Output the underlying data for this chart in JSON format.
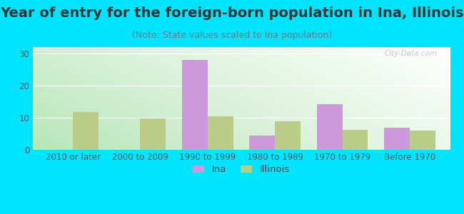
{
  "title": "Year of entry for the foreign-born population in Ina, Illinois",
  "subtitle": "(Note: State values scaled to Ina population)",
  "categories": [
    "2010 or later",
    "2000 to 2009",
    "1990 to 1999",
    "1980 to 1989",
    "1970 to 1979",
    "Before 1970"
  ],
  "ina_values": [
    0,
    0,
    28,
    4.5,
    14.3,
    7.0
  ],
  "illinois_values": [
    11.8,
    9.7,
    10.5,
    8.8,
    6.2,
    6.0
  ],
  "ina_color": "#cc99dd",
  "illinois_color": "#bbcc88",
  "bar_width": 0.38,
  "ylim": [
    0,
    32
  ],
  "yticks": [
    0,
    10,
    20,
    30
  ],
  "legend_labels": [
    "Ina",
    "Illinois"
  ],
  "figure_bg": "#00e5ff",
  "bg_color_topleft": "#c8e8c8",
  "bg_color_bottomleft": "#b0e0b0",
  "bg_color_topright": "#ffffff",
  "bg_color_bottomright": "#e8f4e8",
  "title_fontsize": 14,
  "subtitle_fontsize": 9,
  "tick_fontsize": 8.5,
  "watermark": "City-Data.com",
  "title_color": "#333333",
  "tick_color": "#555555"
}
